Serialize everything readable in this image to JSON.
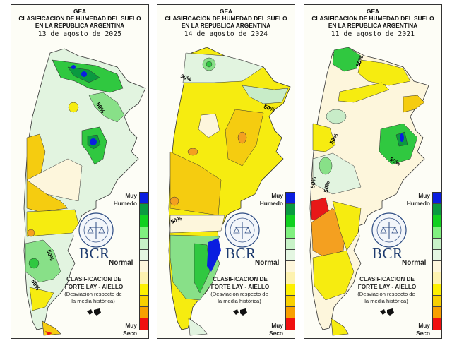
{
  "panels": [
    {
      "title_line1": "GEA",
      "title_line2": "CLASIFICACION DE HUMEDAD DEL SUELO",
      "title_line3": "EN LA REPUBLICA ARGENTINA",
      "date": "13 de agosto de 2025",
      "contour_labels": [
        "50%",
        "50%",
        "50%"
      ]
    },
    {
      "title_line1": "GEA",
      "title_line2": "CLASIFICACION DE HUMEDAD DEL SUELO",
      "title_line3": "EN LA REPUBLICA ARGENTINA",
      "date": "14 de agosto de 2024",
      "contour_labels": [
        "50%",
        "50%",
        "50%"
      ]
    },
    {
      "title_line1": "GEA",
      "title_line2": "CLASIFICACION DE HUMEDAD DEL SUELO",
      "title_line3": "EN LA REPUBLICA ARGENTINA",
      "date": "11 de agosto de 2021",
      "contour_labels": [
        "50%",
        "50%",
        "50%",
        "50%",
        "50%"
      ]
    }
  ],
  "legend": {
    "muy": "Muy",
    "humedo": "Humedo",
    "normal": "Normal",
    "seco": "Seco",
    "method_line1": "CLASIFICACION DE",
    "method_line2": "FORTE LAY - AIELLO",
    "desc_line1": "(Desviación respecto de",
    "desc_line2": "la media histórica)",
    "brand": "BCR",
    "scale_colors": [
      "#0a1ee0",
      "#0a9a40",
      "#10d020",
      "#80f080",
      "#c8f2c8",
      "#e4f6e2",
      "#fdf6dc",
      "#fdf2b0",
      "#fdf000",
      "#f8d000",
      "#f8a000",
      "#f01010"
    ]
  },
  "map_colors": {
    "very_wet": "#0a1ee0",
    "wet3": "#0a9a40",
    "wet2": "#30c840",
    "wet1": "#88e088",
    "slightly_wet": "#c8ecc8",
    "near_normal_wet": "#e2f4e0",
    "normal": "#fdf6dc",
    "slightly_dry": "#fdf2b0",
    "dry1": "#f6ec10",
    "dry2": "#f5cc10",
    "dry3": "#f4a020",
    "very_dry": "#e81818"
  }
}
